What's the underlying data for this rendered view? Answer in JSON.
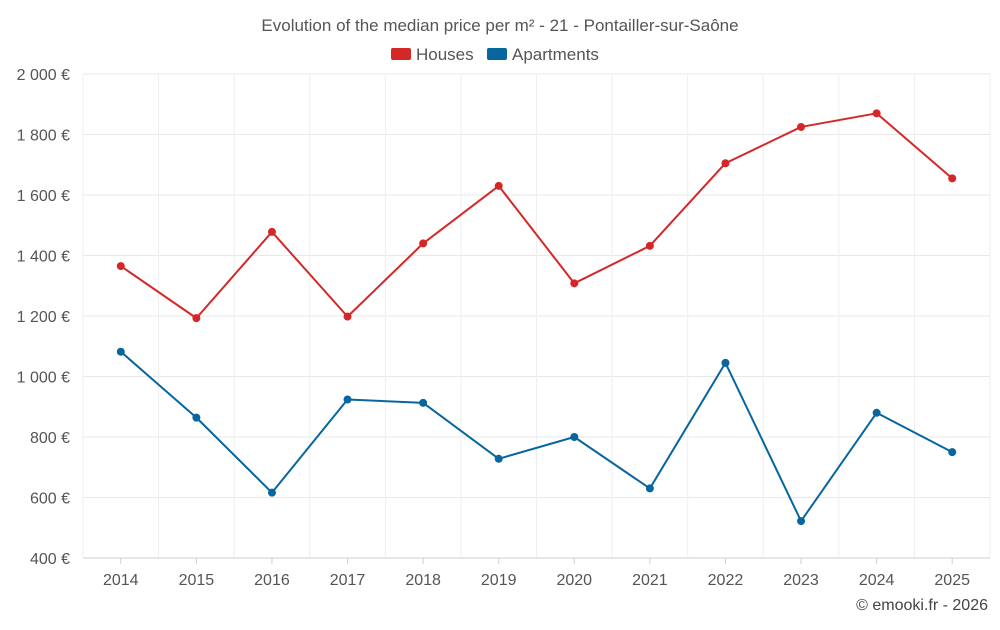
{
  "chart_data": {
    "type": "line",
    "title": "Evolution of the median price per m² - 21 - Pontailler-sur-Saône",
    "xlabel": "",
    "ylabel": "",
    "categories": [
      "2014",
      "2015",
      "2016",
      "2017",
      "2018",
      "2019",
      "2020",
      "2021",
      "2022",
      "2023",
      "2024",
      "2025"
    ],
    "ylim": [
      400,
      2000
    ],
    "yticks": [
      400,
      600,
      800,
      1000,
      1200,
      1400,
      1600,
      1800,
      2000
    ],
    "ytick_labels": [
      "400 €",
      "600 €",
      "800 €",
      "1 000 €",
      "1 200 €",
      "1 400 €",
      "1 600 €",
      "1 800 €",
      "2 000 €"
    ],
    "grid": true,
    "legend_position": "top-center",
    "series": [
      {
        "name": "Houses",
        "color": "#d62728",
        "values": [
          1365,
          1193,
          1478,
          1198,
          1440,
          1630,
          1308,
          1432,
          1705,
          1825,
          1870,
          1655
        ]
      },
      {
        "name": "Apartments",
        "color": "#08669e",
        "values": [
          1082,
          864,
          616,
          924,
          913,
          728,
          800,
          630,
          1045,
          522,
          880,
          750
        ]
      }
    ],
    "copyright": "© emooki.fr - 2026"
  }
}
